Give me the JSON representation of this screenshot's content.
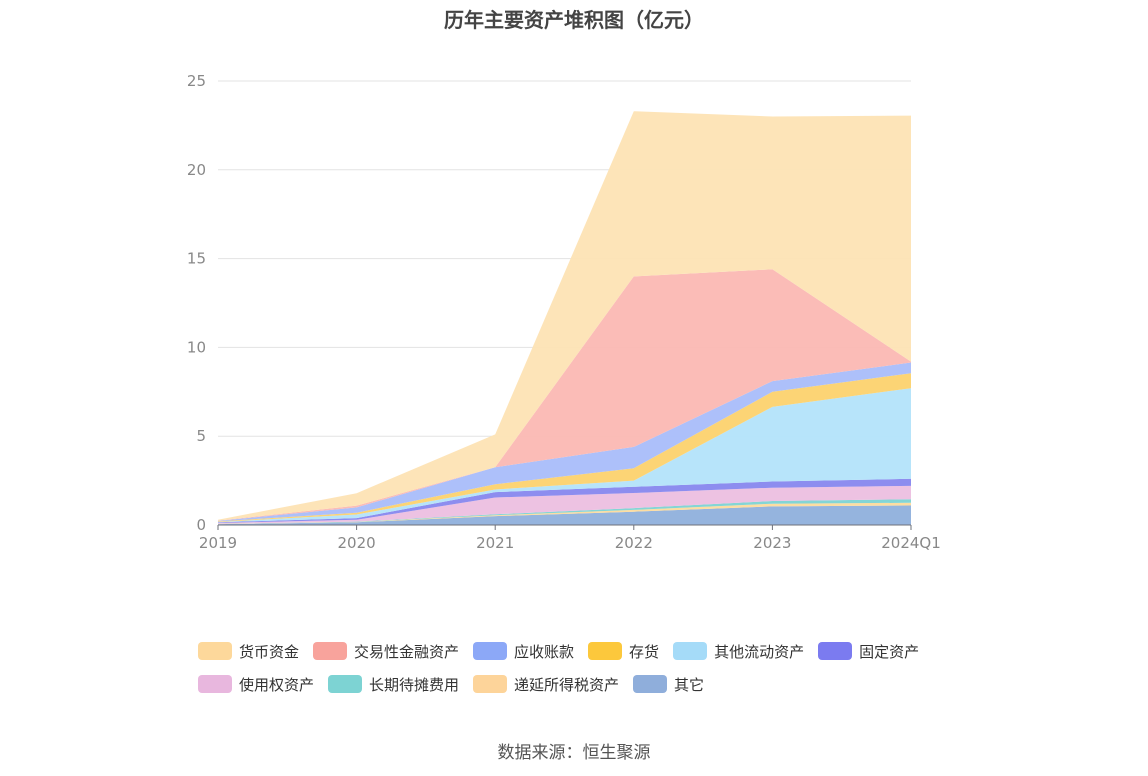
{
  "chart_data": {
    "type": "area",
    "stacked": true,
    "title": "历年主要资产堆积图（亿元）",
    "categories": [
      "2019",
      "2020",
      "2021",
      "2022",
      "2023",
      "2024Q1"
    ],
    "ylim": [
      0,
      25
    ],
    "yticks": [
      0,
      5,
      10,
      15,
      20,
      25
    ],
    "grid": true,
    "legend_position": "bottom",
    "series": [
      {
        "name": "其它",
        "color": "#8fb0dc",
        "values": [
          0.05,
          0.15,
          0.5,
          0.75,
          1.05,
          1.1
        ]
      },
      {
        "name": "递延所得税资产",
        "color": "#fddb9c",
        "values": [
          0.01,
          0.02,
          0.05,
          0.1,
          0.15,
          0.15
        ]
      },
      {
        "name": "长期待摊费用",
        "color": "#7dd3d3",
        "values": [
          0.01,
          0.02,
          0.05,
          0.1,
          0.15,
          0.2
        ]
      },
      {
        "name": "使用权资产",
        "color": "#ecbfe0",
        "values": [
          0.05,
          0.1,
          0.95,
          0.85,
          0.75,
          0.75
        ]
      },
      {
        "name": "固定资产",
        "color": "#8787ee",
        "values": [
          0.03,
          0.1,
          0.3,
          0.35,
          0.35,
          0.4
        ]
      },
      {
        "name": "其他流动资产",
        "color": "#b3e3fa",
        "values": [
          0.02,
          0.2,
          0.15,
          0.35,
          4.2,
          5.1
        ]
      },
      {
        "name": "存货",
        "color": "#fcd26e",
        "values": [
          0.03,
          0.1,
          0.3,
          0.7,
          0.85,
          0.85
        ]
      },
      {
        "name": "应收账款",
        "color": "#a9bdfa",
        "values": [
          0.03,
          0.3,
          0.95,
          1.2,
          0.6,
          0.6
        ]
      },
      {
        "name": "交易性金融资产",
        "color": "#fbb8b3",
        "values": [
          0.02,
          0.1,
          0.0,
          9.6,
          6.3,
          0.05
        ]
      },
      {
        "name": "货币资金",
        "color": "#fde3b4",
        "values": [
          0.05,
          0.7,
          1.85,
          9.3,
          8.6,
          13.85
        ]
      }
    ]
  },
  "legend": [
    {
      "name": "货币资金",
      "color": "#fdd89b"
    },
    {
      "name": "交易性金融资产",
      "color": "#f8a39c"
    },
    {
      "name": "应收账款",
      "color": "#8ca8f7"
    },
    {
      "name": "存货",
      "color": "#fcc83c"
    },
    {
      "name": "其他流动资产",
      "color": "#a5dbf8"
    },
    {
      "name": "固定资产",
      "color": "#7b7bf0"
    },
    {
      "name": "使用权资产",
      "color": "#e8b7de"
    },
    {
      "name": "长期待摊费用",
      "color": "#7dd3d3"
    },
    {
      "name": "递延所得税资产",
      "color": "#fdd49a"
    },
    {
      "name": "其它",
      "color": "#8faedb"
    }
  ],
  "source": "数据来源：恒生聚源"
}
